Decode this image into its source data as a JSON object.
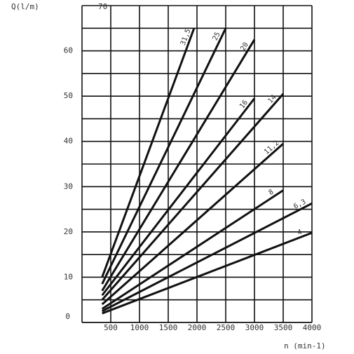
{
  "chart_data": {
    "type": "line",
    "y_label": "Q(l/m)",
    "x_label": "n (min-1)",
    "xlim": [
      0,
      4000
    ],
    "xticks": [
      500,
      1000,
      1500,
      2000,
      2500,
      3000,
      3500,
      4000
    ],
    "ylim": [
      0,
      70
    ],
    "yticks": [
      0,
      10,
      20,
      30,
      40,
      50,
      60,
      70
    ],
    "yminor": [
      5,
      15,
      25,
      35,
      45,
      55,
      65
    ],
    "grid": true,
    "color": "#111",
    "series": [
      {
        "name": "31,5",
        "x": [
          350,
          1950
        ],
        "values": [
          10,
          65
        ]
      },
      {
        "name": "25",
        "x": [
          350,
          2500
        ],
        "values": [
          8.5,
          65
        ]
      },
      {
        "name": "20",
        "x": [
          350,
          3000
        ],
        "values": [
          7,
          62.5
        ]
      },
      {
        "name": "16",
        "x": [
          350,
          3000
        ],
        "values": [
          6,
          49.5
        ]
      },
      {
        "name": "14",
        "x": [
          350,
          3500
        ],
        "values": [
          5,
          50.5
        ]
      },
      {
        "name": "11,2",
        "x": [
          350,
          3500
        ],
        "values": [
          4,
          39.5
        ]
      },
      {
        "name": "8",
        "x": [
          350,
          3500
        ],
        "values": [
          3,
          29.2
        ]
      },
      {
        "name": "6,3",
        "x": [
          350,
          4000
        ],
        "values": [
          2.5,
          26.3
        ]
      },
      {
        "name": "4",
        "x": [
          350,
          4000
        ],
        "values": [
          2,
          19.8
        ]
      }
    ]
  }
}
